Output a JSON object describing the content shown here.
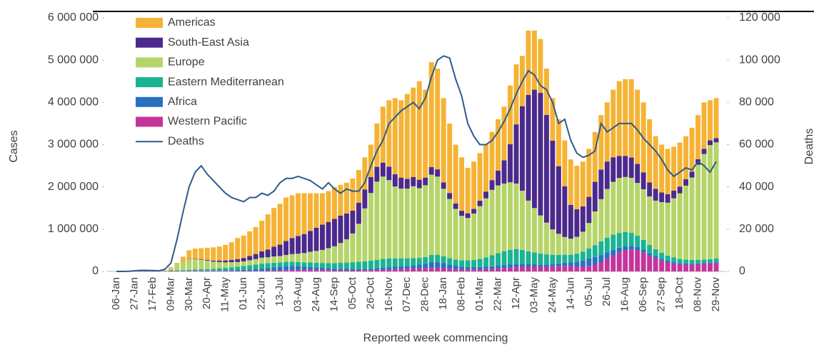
{
  "chart_data": {
    "type": "bar",
    "y_label": "Cases",
    "y2_label": "Deaths",
    "x_label": "Reported week commencing",
    "legend": "upper-left",
    "stacked": true,
    "grid": false,
    "categories": [
      "06-Jan",
      null,
      null,
      "27-Jan",
      null,
      null,
      "17-Feb",
      null,
      null,
      "09-Mar",
      null,
      null,
      "30-Mar",
      null,
      null,
      "20-Apr",
      null,
      null,
      "11-May",
      null,
      null,
      "01-Jun",
      null,
      null,
      "22-Jun",
      null,
      null,
      "13-Jul",
      null,
      null,
      "03-Aug",
      null,
      null,
      "24-Aug",
      null,
      null,
      "14-Sep",
      null,
      null,
      "05-Oct",
      null,
      null,
      "26-Oct",
      null,
      null,
      "16-Nov",
      null,
      null,
      "07-Dec",
      null,
      null,
      "28-Dec",
      null,
      null,
      "18-Jan",
      null,
      null,
      "08-Feb",
      null,
      null,
      "01-Mar",
      null,
      null,
      "22-Mar",
      null,
      null,
      "12-Apr",
      null,
      null,
      "03-May",
      null,
      null,
      "24-May",
      null,
      null,
      "14-Jun",
      null,
      null,
      "05-Jul",
      null,
      null,
      "26-Jul",
      null,
      null,
      "16-Aug",
      null,
      null,
      "06-Sep",
      null,
      null,
      "27-Sep",
      null,
      null,
      "18-Oct",
      null,
      null,
      "08-Nov",
      null,
      null,
      "29-Nov"
    ],
    "ylim": [
      0,
      6000000
    ],
    "yticks": [
      0,
      {
        "value": 1000000,
        "label": "1 000 000"
      },
      {
        "value": 2000000,
        "label": "2 000 000"
      },
      {
        "value": 3000000,
        "label": "3 000 000"
      },
      {
        "value": 4000000,
        "label": "4 000 000"
      },
      {
        "value": 5000000,
        "label": "5 000 000"
      },
      {
        "value": 6000000,
        "label": "6 000 000"
      }
    ],
    "y2lim": [
      0,
      120000
    ],
    "y2ticks": [
      0,
      {
        "value": 20000,
        "label": "20 000"
      },
      {
        "value": 40000,
        "label": "40 000"
      },
      {
        "value": 60000,
        "label": "60 000"
      },
      {
        "value": 80000,
        "label": "80 000"
      },
      {
        "value": 100000,
        "label": "100 000"
      },
      {
        "value": 120000,
        "label": "120 000"
      }
    ],
    "series": [
      {
        "name": "Americas",
        "color": "#f5b335",
        "values": [
          0,
          0,
          0,
          0,
          0,
          0,
          0,
          0,
          2000,
          12000,
          35000,
          117000,
          205000,
          243000,
          256000,
          284000,
          314000,
          331000,
          371000,
          417000,
          498000,
          532000,
          585000,
          638000,
          726000,
          834000,
          915000,
          965000,
          1030000,
          1010000,
          1010000,
          965000,
          895000,
          815000,
          740000,
          730000,
          755000,
          727000,
          730000,
          762000,
          773000,
          759000,
          765000,
          1025000,
          1325000,
          1570000,
          1800000,
          1830000,
          2010000,
          2115000,
          2330000,
          2080000,
          2480000,
          2385000,
          1995000,
          1645000,
          1390000,
          1265000,
          1075000,
          1120000,
          1125000,
          1110000,
          1140000,
          1215000,
          1270000,
          1390000,
          1420000,
          1190000,
          1525000,
          1400000,
          1275000,
          1095000,
          1005000,
          1110000,
          1085000,
          1075000,
          1030000,
          1060000,
          1135000,
          1180000,
          1290000,
          1400000,
          1600000,
          1770000,
          1815000,
          1855000,
          1755000,
          1655000,
          1495000,
          1245000,
          1130000,
          1075000,
          1040000,
          1042000,
          1020000,
          1038000,
          1045000,
          1100000,
          950000,
          945000
        ]
      },
      {
        "name": "South-East Asia",
        "color": "#4b2a8c",
        "values": [
          0,
          0,
          0,
          0,
          0,
          0,
          0,
          0,
          0,
          0,
          0,
          3000,
          6000,
          10000,
          14000,
          20000,
          25000,
          35000,
          45000,
          55000,
          70000,
          80000,
          100000,
          120000,
          150000,
          180000,
          230000,
          270000,
          330000,
          380000,
          420000,
          450000,
          490000,
          550000,
          600000,
          620000,
          650000,
          650000,
          610000,
          540000,
          500000,
          450000,
          380000,
          350000,
          330000,
          320000,
          290000,
          260000,
          230000,
          220000,
          200000,
          180000,
          180000,
          170000,
          150000,
          140000,
          130000,
          120000,
          110000,
          110000,
          130000,
          160000,
          230000,
          350000,
          550000,
          900000,
          1400000,
          2000000,
          2500000,
          2800000,
          2900000,
          2550000,
          2100000,
          1600000,
          1200000,
          800000,
          650000,
          600000,
          620000,
          700000,
          700000,
          650000,
          580000,
          520000,
          500000,
          480000,
          450000,
          400000,
          330000,
          280000,
          230000,
          200000,
          180000,
          160000,
          150000,
          140000,
          130000,
          120000,
          110000,
          100000
        ]
      },
      {
        "name": "Europe",
        "color": "#b5d56a",
        "values": [
          0,
          0,
          0,
          0,
          0,
          0,
          0,
          1000,
          10000,
          60000,
          140000,
          200000,
          250000,
          240000,
          230000,
          200000,
          170000,
          150000,
          130000,
          120000,
          110000,
          110000,
          120000,
          130000,
          140000,
          140000,
          150000,
          150000,
          160000,
          180000,
          200000,
          220000,
          250000,
          280000,
          310000,
          350000,
          400000,
          470000,
          550000,
          680000,
          900000,
          1250000,
          1600000,
          1850000,
          1950000,
          1850000,
          1700000,
          1650000,
          1650000,
          1700000,
          1650000,
          1700000,
          1900000,
          1850000,
          1600000,
          1400000,
          1200000,
          1050000,
          1000000,
          1100000,
          1250000,
          1400000,
          1550000,
          1600000,
          1600000,
          1600000,
          1550000,
          1400000,
          1200000,
          1050000,
          900000,
          750000,
          600000,
          500000,
          420000,
          380000,
          400000,
          470000,
          600000,
          800000,
          1000000,
          1150000,
          1250000,
          1300000,
          1300000,
          1300000,
          1250000,
          1200000,
          1150000,
          1150000,
          1200000,
          1250000,
          1400000,
          1550000,
          1750000,
          1950000,
          2250000,
          2500000,
          2700000,
          2750000
        ]
      },
      {
        "name": "Eastern Mediterranean",
        "color": "#1bb394",
        "values": [
          0,
          0,
          0,
          0,
          0,
          0,
          0,
          0,
          5000,
          8000,
          15000,
          20000,
          25000,
          30000,
          30000,
          35000,
          40000,
          50000,
          60000,
          70000,
          80000,
          90000,
          100000,
          110000,
          120000,
          120000,
          110000,
          100000,
          100000,
          100000,
          100000,
          105000,
          110000,
          110000,
          115000,
          125000,
          130000,
          140000,
          150000,
          160000,
          170000,
          180000,
          190000,
          200000,
          210000,
          210000,
          200000,
          190000,
          180000,
          170000,
          160000,
          160000,
          170000,
          170000,
          160000,
          150000,
          145000,
          150000,
          160000,
          170000,
          190000,
          220000,
          260000,
          300000,
          330000,
          350000,
          360000,
          330000,
          300000,
          280000,
          260000,
          240000,
          220000,
          200000,
          190000,
          180000,
          190000,
          210000,
          240000,
          280000,
          320000,
          350000,
          360000,
          350000,
          340000,
          310000,
          270000,
          230000,
          190000,
          160000,
          140000,
          120000,
          110000,
          100000,
          95000,
          90000,
          85000,
          80000,
          80000,
          80000
        ]
      },
      {
        "name": "Africa",
        "color": "#2a70c0",
        "values": [
          0,
          0,
          0,
          0,
          0,
          0,
          0,
          0,
          0,
          0,
          0,
          2000,
          4000,
          5000,
          6000,
          7000,
          9000,
          12000,
          14000,
          18000,
          22000,
          28000,
          33000,
          40000,
          50000,
          60000,
          75000,
          90000,
          100000,
          95000,
          80000,
          70000,
          60000,
          55000,
          50000,
          45000,
          40000,
          38000,
          35000,
          33000,
          32000,
          33000,
          35000,
          40000,
          45000,
          50000,
          55000,
          60000,
          65000,
          75000,
          90000,
          110000,
          140000,
          140000,
          120000,
          100000,
          80000,
          65000,
          60000,
          55000,
          55000,
          55000,
          60000,
          65000,
          70000,
          70000,
          70000,
          70000,
          65000,
          60000,
          55000,
          55000,
          55000,
          60000,
          75000,
          95000,
          120000,
          150000,
          175000,
          180000,
          170000,
          150000,
          130000,
          110000,
          95000,
          85000,
          75000,
          65000,
          55000,
          45000,
          40000,
          35000,
          30000,
          28000,
          25000,
          22000,
          20000,
          20000,
          20000,
          25000
        ]
      },
      {
        "name": "Western Pacific",
        "color": "#c4359b",
        "values": [
          0,
          0,
          2000,
          12000,
          20000,
          18000,
          10000,
          5000,
          8000,
          20000,
          10000,
          8000,
          10000,
          12000,
          14000,
          14000,
          12000,
          12000,
          10000,
          10000,
          10000,
          10000,
          12000,
          12000,
          14000,
          16000,
          20000,
          25000,
          30000,
          35000,
          40000,
          40000,
          45000,
          40000,
          35000,
          30000,
          25000,
          25000,
          25000,
          25000,
          25000,
          28000,
          30000,
          35000,
          40000,
          50000,
          55000,
          60000,
          65000,
          70000,
          70000,
          70000,
          80000,
          85000,
          75000,
          65000,
          55000,
          50000,
          45000,
          45000,
          50000,
          55000,
          60000,
          70000,
          80000,
          90000,
          100000,
          110000,
          110000,
          110000,
          110000,
          110000,
          120000,
          130000,
          130000,
          120000,
          110000,
          110000,
          130000,
          160000,
          220000,
          300000,
          380000,
          450000,
          500000,
          520000,
          500000,
          450000,
          380000,
          320000,
          260000,
          220000,
          190000,
          170000,
          160000,
          160000,
          170000,
          180000,
          190000,
          200000
        ]
      },
      {
        "name": "Deaths",
        "color": "#2e5b8a",
        "type": "line",
        "axis": "y2",
        "values": [
          0,
          0,
          100,
          300,
          500,
          500,
          400,
          300,
          1000,
          4000,
          15000,
          28000,
          40000,
          47000,
          50000,
          46000,
          43000,
          40000,
          37000,
          35000,
          34000,
          33000,
          35000,
          35000,
          37000,
          36000,
          38000,
          42000,
          44000,
          44000,
          45000,
          44000,
          43000,
          41000,
          39000,
          42000,
          39000,
          37000,
          39000,
          38000,
          38000,
          42000,
          50000,
          57000,
          62000,
          70000,
          73000,
          76000,
          78000,
          80000,
          77000,
          82000,
          92000,
          100000,
          102000,
          101000,
          91000,
          83000,
          70000,
          64000,
          60000,
          60000,
          62000,
          66000,
          71000,
          77000,
          84000,
          90000,
          95000,
          93000,
          88000,
          86000,
          80000,
          70000,
          72000,
          62000,
          56000,
          54000,
          55000,
          57000,
          70000,
          66000,
          68000,
          70000,
          70000,
          70000,
          67000,
          63000,
          60000,
          57000,
          53000,
          48000,
          45000,
          47000,
          49000,
          48000,
          52000,
          50000,
          47000,
          52000
        ]
      }
    ]
  }
}
